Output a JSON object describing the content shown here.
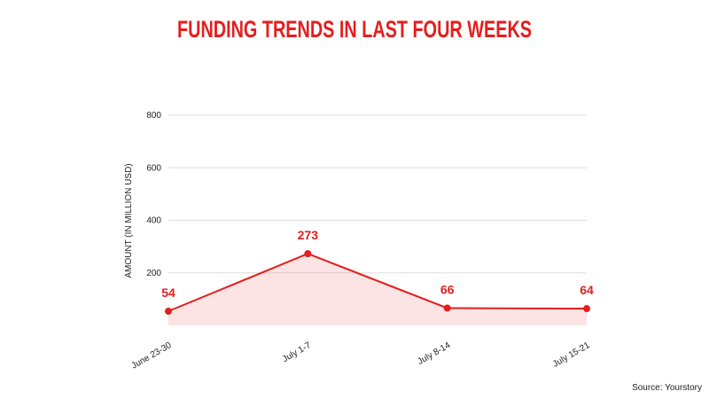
{
  "chart_data": {
    "type": "area",
    "title": "FUNDING TRENDS IN LAST FOUR WEEKS",
    "y_label": "AMOUNT (IN MILLION USD)",
    "source": "Source: Yourstory",
    "categories": [
      "June 23-30",
      "July 1-7",
      "July 8-14",
      "July 15-21"
    ],
    "values": [
      54,
      273,
      66,
      64
    ],
    "color": "#e41e1e",
    "ylim": [
      0,
      800
    ],
    "yticks": [
      200,
      400,
      600,
      800
    ],
    "grid": true
  }
}
